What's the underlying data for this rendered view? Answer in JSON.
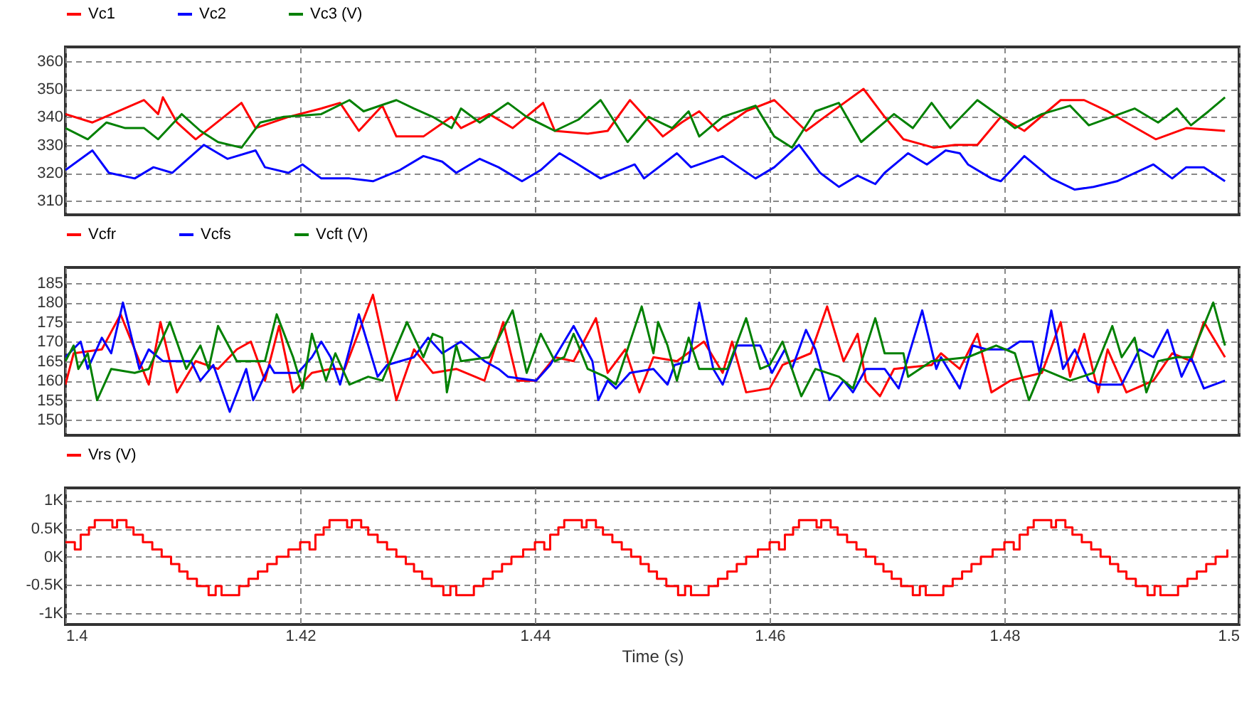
{
  "chart_data": [
    {
      "type": "line",
      "xlim": [
        1.4,
        1.5
      ],
      "xticks": [
        1.4,
        1.42,
        1.44,
        1.46,
        1.48,
        1.5
      ],
      "ylim": [
        305,
        365
      ],
      "yticks": [
        310,
        320,
        330,
        340,
        350,
        360
      ],
      "grid": true,
      "legend": "top left",
      "tick_labels": "y",
      "series": [
        {
          "name": "Vc1",
          "color": "#ff0000",
          "x": [
            1.4,
            1.4023,
            1.4067,
            1.4079,
            1.4083,
            1.4095,
            1.4111,
            1.415,
            1.4162,
            1.419,
            1.4218,
            1.4234,
            1.425,
            1.427,
            1.4282,
            1.4305,
            1.4329,
            1.4337,
            1.4361,
            1.4381,
            1.4407,
            1.4417,
            1.4445,
            1.4462,
            1.4481,
            1.4509,
            1.4525,
            1.454,
            1.4556,
            1.458,
            1.4604,
            1.4631,
            1.4647,
            1.468,
            1.4698,
            1.4714,
            1.474,
            1.4758,
            1.4777,
            1.4797,
            1.4817,
            1.4848,
            1.4868,
            1.4888,
            1.4904,
            1.4929,
            1.4955,
            1.4988
          ],
          "values": [
            341,
            338,
            346,
            341,
            347,
            338,
            332,
            345,
            336,
            340,
            343,
            345,
            335,
            344,
            333,
            333,
            340,
            336,
            341,
            336,
            345,
            335,
            334,
            335,
            346,
            333,
            338,
            342,
            335,
            342,
            346,
            335,
            340,
            350,
            340,
            332,
            329,
            330,
            330,
            340,
            335,
            346,
            346,
            342,
            338,
            332,
            336,
            335
          ]
        },
        {
          "name": "Vc2",
          "color": "#0000ff",
          "x": [
            1.4,
            1.4023,
            1.4037,
            1.4059,
            1.4075,
            1.4091,
            1.4118,
            1.4138,
            1.4162,
            1.417,
            1.419,
            1.4202,
            1.4218,
            1.4242,
            1.4262,
            1.4285,
            1.4305,
            1.4321,
            1.4333,
            1.4353,
            1.4369,
            1.4389,
            1.4405,
            1.4421,
            1.4433,
            1.4456,
            1.4485,
            1.4493,
            1.4521,
            1.4533,
            1.456,
            1.4588,
            1.4604,
            1.4625,
            1.4643,
            1.4659,
            1.4675,
            1.469,
            1.4698,
            1.4718,
            1.4734,
            1.475,
            1.4762,
            1.4769,
            1.4789,
            1.4797,
            1.4817,
            1.484,
            1.486,
            1.4876,
            1.4896,
            1.4927,
            1.4943,
            1.4955,
            1.497,
            1.4988
          ],
          "values": [
            321,
            328,
            320,
            318,
            322,
            320,
            330,
            325,
            328,
            322,
            320,
            323,
            318,
            318,
            317,
            321,
            326,
            324,
            320,
            325,
            322,
            317,
            321,
            327,
            324,
            318,
            323,
            318,
            327,
            322,
            326,
            318,
            322,
            330,
            320,
            315,
            319,
            316,
            320,
            327,
            323,
            328,
            327,
            323,
            318,
            317,
            326,
            318,
            314,
            315,
            317,
            323,
            318,
            322,
            322,
            317
          ]
        },
        {
          "name": "Vc3 (V)",
          "color": "#008000",
          "x": [
            1.4,
            1.4019,
            1.4035,
            1.4051,
            1.4067,
            1.4079,
            1.4099,
            1.4115,
            1.413,
            1.415,
            1.4166,
            1.4186,
            1.4218,
            1.4242,
            1.4254,
            1.4282,
            1.4297,
            1.4313,
            1.4329,
            1.4337,
            1.4353,
            1.4377,
            1.4393,
            1.4417,
            1.4437,
            1.4456,
            1.4479,
            1.4497,
            1.4517,
            1.4531,
            1.454,
            1.456,
            1.4588,
            1.4604,
            1.4619,
            1.4639,
            1.4659,
            1.4678,
            1.4706,
            1.4722,
            1.4738,
            1.4754,
            1.4777,
            1.4797,
            1.4809,
            1.4832,
            1.4856,
            1.4872,
            1.4911,
            1.4931,
            1.4947,
            1.4959,
            1.4974,
            1.4988
          ],
          "values": [
            336,
            332,
            338,
            336,
            336,
            332,
            341,
            335,
            331,
            329,
            338,
            340,
            341,
            346,
            342,
            346,
            343,
            340,
            336,
            343,
            338,
            345,
            340,
            335,
            339,
            346,
            331,
            340,
            336,
            342,
            333,
            340,
            344,
            333,
            329,
            342,
            345,
            331,
            341,
            336,
            345,
            336,
            346,
            340,
            336,
            341,
            344,
            337,
            343,
            338,
            343,
            337,
            342,
            347
          ]
        }
      ]
    },
    {
      "type": "line",
      "xlim": [
        1.4,
        1.5
      ],
      "xticks": [
        1.4,
        1.42,
        1.44,
        1.46,
        1.48,
        1.5
      ],
      "ylim": [
        146,
        189
      ],
      "yticks": [
        150,
        155,
        160,
        165,
        170,
        175,
        180,
        185
      ],
      "grid": true,
      "legend": "top left",
      "tick_labels": "y",
      "series": [
        {
          "name": "Vcfr",
          "color": "#ff0000",
          "x": [
            1.4,
            1.4007,
            1.4031,
            1.4047,
            1.4059,
            1.4071,
            1.4081,
            1.4095,
            1.4111,
            1.413,
            1.4146,
            1.4158,
            1.417,
            1.4182,
            1.4194,
            1.421,
            1.4226,
            1.4238,
            1.4262,
            1.4282,
            1.4297,
            1.4313,
            1.4333,
            1.4357,
            1.4373,
            1.4385,
            1.4401,
            1.4417,
            1.4433,
            1.4452,
            1.4462,
            1.4477,
            1.4489,
            1.4501,
            1.4521,
            1.4544,
            1.456,
            1.4568,
            1.458,
            1.46,
            1.4611,
            1.4635,
            1.4649,
            1.4663,
            1.4675,
            1.4682,
            1.4694,
            1.4706,
            1.4738,
            1.4746,
            1.4762,
            1.4777,
            1.4789,
            1.4805,
            1.4832,
            1.4848,
            1.4856,
            1.4868,
            1.488,
            1.4888,
            1.4904,
            1.4927,
            1.4943,
            1.4959,
            1.497,
            1.4988
          ],
          "values": [
            159,
            167,
            168,
            177,
            168,
            159,
            175,
            157,
            165,
            163,
            168,
            170,
            160,
            174,
            157,
            162,
            163,
            163,
            182,
            155,
            168,
            162,
            163,
            160,
            175,
            160,
            160,
            166,
            165,
            176,
            162,
            168,
            157,
            166,
            165,
            170,
            162,
            170,
            157,
            158,
            164,
            167,
            179,
            165,
            172,
            160,
            156,
            163,
            164,
            167,
            163,
            172,
            157,
            160,
            162,
            175,
            161,
            172,
            157,
            168,
            157,
            160,
            167,
            165,
            175,
            166
          ]
        },
        {
          "name": "Vcfs",
          "color": "#0000ff",
          "x": [
            1.4,
            1.4013,
            1.4019,
            1.4031,
            1.4039,
            1.4049,
            1.4063,
            1.4071,
            1.4083,
            1.4107,
            1.4115,
            1.4126,
            1.414,
            1.4154,
            1.416,
            1.4174,
            1.4178,
            1.4198,
            1.421,
            1.4218,
            1.4226,
            1.4234,
            1.425,
            1.4266,
            1.4274,
            1.4297,
            1.4309,
            1.4321,
            1.4337,
            1.4357,
            1.4369,
            1.4377,
            1.4401,
            1.4413,
            1.4433,
            1.4449,
            1.4454,
            1.4462,
            1.4469,
            1.4481,
            1.4501,
            1.4513,
            1.4519,
            1.4531,
            1.454,
            1.4552,
            1.456,
            1.4572,
            1.4592,
            1.4602,
            1.4613,
            1.4619,
            1.4631,
            1.4639,
            1.4651,
            1.4663,
            1.4671,
            1.4682,
            1.4698,
            1.471,
            1.473,
            1.4742,
            1.4746,
            1.4762,
            1.4773,
            1.4785,
            1.4803,
            1.4813,
            1.4824,
            1.483,
            1.484,
            1.485,
            1.486,
            1.4872,
            1.488,
            1.49,
            1.4915,
            1.4927,
            1.4939,
            1.4951,
            1.4959,
            1.497,
            1.4988
          ],
          "values": [
            166,
            170,
            163,
            171,
            167,
            180,
            163,
            168,
            165,
            165,
            160,
            164,
            152,
            163,
            155,
            164,
            162,
            162,
            166,
            170,
            166,
            159,
            177,
            161,
            164,
            166,
            171,
            167,
            170,
            165,
            163,
            161,
            160,
            164,
            174,
            165,
            155,
            160,
            158,
            162,
            163,
            159,
            164,
            165,
            180,
            163,
            159,
            169,
            169,
            162,
            168,
            163,
            173,
            168,
            155,
            160,
            157,
            163,
            163,
            158,
            178,
            163,
            166,
            158,
            169,
            168,
            168,
            170,
            170,
            162,
            178,
            163,
            168,
            160,
            159,
            159,
            168,
            166,
            173,
            161,
            166,
            158,
            160
          ]
        },
        {
          "name": "Vcft (V)",
          "color": "#008000",
          "x": [
            1.4,
            1.4007,
            1.4011,
            1.4019,
            1.4027,
            1.4039,
            1.4059,
            1.4071,
            1.4089,
            1.4103,
            1.4115,
            1.4122,
            1.413,
            1.4146,
            1.417,
            1.418,
            1.4194,
            1.4202,
            1.421,
            1.4222,
            1.423,
            1.4242,
            1.4258,
            1.427,
            1.4291,
            1.4305,
            1.4313,
            1.4321,
            1.4325,
            1.4333,
            1.4337,
            1.4361,
            1.4381,
            1.4393,
            1.4405,
            1.4417,
            1.4425,
            1.4433,
            1.4445,
            1.446,
            1.4469,
            1.4491,
            1.4501,
            1.4505,
            1.4513,
            1.4521,
            1.4531,
            1.454,
            1.4564,
            1.458,
            1.4592,
            1.46,
            1.4611,
            1.4627,
            1.4639,
            1.4659,
            1.4671,
            1.469,
            1.4698,
            1.4714,
            1.4718,
            1.4738,
            1.4769,
            1.4777,
            1.4793,
            1.4809,
            1.4821,
            1.4832,
            1.4856,
            1.4876,
            1.4892,
            1.49,
            1.4911,
            1.4921,
            1.4931,
            1.4947,
            1.4959,
            1.4978,
            1.4988
          ],
          "values": [
            165,
            169,
            163,
            167,
            155,
            163,
            162,
            163,
            175,
            163,
            169,
            163,
            174,
            165,
            165,
            177,
            166,
            158,
            172,
            160,
            167,
            159,
            161,
            160,
            175,
            166,
            172,
            171,
            157,
            169,
            165,
            166,
            178,
            162,
            172,
            165,
            166,
            172,
            163,
            161,
            159,
            179,
            167,
            175,
            169,
            160,
            171,
            163,
            163,
            176,
            163,
            164,
            170,
            156,
            163,
            161,
            158,
            176,
            167,
            167,
            161,
            165,
            166,
            167,
            169,
            167,
            155,
            163,
            160,
            162,
            174,
            166,
            171,
            157,
            165,
            166,
            166,
            180,
            169
          ]
        }
      ]
    },
    {
      "type": "step",
      "xlabel": "Time (s)",
      "xlim": [
        1.4,
        1.5
      ],
      "xticks": [
        1.4,
        1.42,
        1.44,
        1.46,
        1.48,
        1.5
      ],
      "ylim": [
        -1200,
        1220
      ],
      "yticks": [
        {
          "value": -1000,
          "label": "-1K"
        },
        {
          "value": -500,
          "label": "-0.5K"
        },
        {
          "value": 0,
          "label": "0K"
        },
        {
          "value": 500,
          "label": "0.5K"
        },
        {
          "value": 1000,
          "label": "1K"
        }
      ],
      "grid": true,
      "legend": "top left",
      "series": [
        {
          "name": "Vrs (V)",
          "color": "#ff0000",
          "x": [
            1.4,
            1.4008,
            1.4013,
            1.402,
            1.4025,
            1.404,
            1.4044,
            1.4052,
            1.4058,
            1.4066,
            1.4074,
            1.4082,
            1.409,
            1.4097,
            1.4104,
            1.4112,
            1.4122,
            1.4128,
            1.4133,
            1.4148,
            1.4156,
            1.4164,
            1.4172,
            1.418,
            1.419,
            1.42,
            1.4208,
            1.4213,
            1.422,
            1.4225,
            1.424,
            1.4244,
            1.4252,
            1.4258,
            1.4266,
            1.4274,
            1.4282,
            1.429,
            1.4297,
            1.4304,
            1.4312,
            1.4322,
            1.4328,
            1.4333,
            1.4348,
            1.4356,
            1.4364,
            1.4372,
            1.438,
            1.439,
            1.44,
            1.4408,
            1.4413,
            1.442,
            1.4425,
            1.444,
            1.4444,
            1.4452,
            1.4458,
            1.4466,
            1.4474,
            1.4482,
            1.449,
            1.4497,
            1.4504,
            1.4512,
            1.4522,
            1.4528,
            1.4533,
            1.4548,
            1.4556,
            1.4564,
            1.4572,
            1.458,
            1.459,
            1.46,
            1.4608,
            1.4613,
            1.462,
            1.4625,
            1.464,
            1.4644,
            1.4652,
            1.4658,
            1.4666,
            1.4674,
            1.4682,
            1.469,
            1.4697,
            1.4704,
            1.4712,
            1.4722,
            1.4728,
            1.4733,
            1.4748,
            1.4756,
            1.4764,
            1.4772,
            1.478,
            1.479,
            1.48,
            1.4808,
            1.4813,
            1.482,
            1.4825,
            1.484,
            1.4844,
            1.4852,
            1.4858,
            1.4866,
            1.4874,
            1.4882,
            1.489,
            1.4897,
            1.4904,
            1.4912,
            1.4922,
            1.4928,
            1.4933,
            1.4948,
            1.4956,
            1.4964,
            1.4972,
            1.498,
            1.499
          ],
          "values": [
            260,
            130,
            390,
            520,
            650,
            520,
            650,
            520,
            390,
            260,
            130,
            0,
            -130,
            -260,
            -390,
            -520,
            -680,
            -520,
            -680,
            -520,
            -390,
            -260,
            -130,
            0,
            130,
            260,
            130,
            390,
            520,
            650,
            520,
            650,
            520,
            390,
            260,
            130,
            0,
            -130,
            -260,
            -390,
            -520,
            -680,
            -520,
            -680,
            -520,
            -390,
            -260,
            -130,
            0,
            130,
            260,
            130,
            390,
            520,
            650,
            520,
            650,
            520,
            390,
            260,
            130,
            0,
            -130,
            -260,
            -390,
            -520,
            -680,
            -520,
            -680,
            -520,
            -390,
            -260,
            -130,
            0,
            130,
            260,
            130,
            390,
            520,
            650,
            520,
            650,
            520,
            390,
            260,
            130,
            0,
            -130,
            -260,
            -390,
            -520,
            -680,
            -520,
            -680,
            -520,
            -390,
            -260,
            -130,
            0,
            130,
            260,
            130,
            390,
            520,
            650,
            520,
            650,
            520,
            390,
            260,
            130,
            0,
            -130,
            -260,
            -390,
            -520,
            -680,
            -520,
            -680,
            -520,
            -390,
            -260,
            -130,
            0,
            130
          ]
        }
      ]
    }
  ]
}
